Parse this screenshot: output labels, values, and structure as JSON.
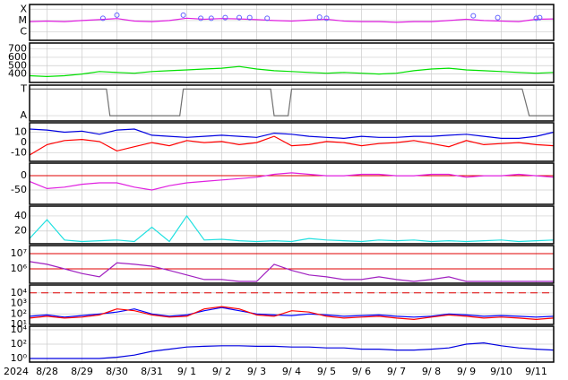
{
  "time_axis": {
    "year": "2024",
    "xlim": [
      0,
      15
    ],
    "xticks": [
      {
        "value": 0.5,
        "label": "8/28"
      },
      {
        "value": 1.5,
        "label": "8/29"
      },
      {
        "value": 2.5,
        "label": "8/30"
      },
      {
        "value": 3.5,
        "label": "8/31"
      },
      {
        "value": 4.5,
        "label": "9/ 1"
      },
      {
        "value": 5.5,
        "label": "9/ 2"
      },
      {
        "value": 6.5,
        "label": "9/ 3"
      },
      {
        "value": 7.5,
        "label": "9/ 4"
      },
      {
        "value": 8.5,
        "label": "9/ 5"
      },
      {
        "value": 9.5,
        "label": "9/ 6"
      },
      {
        "value": 10.5,
        "label": "9/ 7"
      },
      {
        "value": 11.5,
        "label": "9/ 8"
      },
      {
        "value": 12.5,
        "label": "9/ 9"
      },
      {
        "value": 13.5,
        "label": "9/10"
      },
      {
        "value": 14.5,
        "label": "9/11"
      }
    ],
    "x": [
      0,
      0.5,
      1,
      1.5,
      2,
      2.5,
      3,
      3.5,
      4,
      4.5,
      5,
      5.5,
      6,
      6.5,
      7,
      7.5,
      8,
      8.5,
      9,
      9.5,
      10,
      10.5,
      11,
      11.5,
      12,
      12.5,
      13,
      13.5,
      14,
      14.5,
      15
    ]
  },
  "chart_data": [
    {
      "type": "line",
      "log": true,
      "ylim": [
        1.8e-07,
        0.00026
      ],
      "yticks": [
        {
          "value": 0.0001,
          "label": "X"
        },
        {
          "value": 1e-05,
          "label": "M"
        },
        {
          "value": 1e-06,
          "label": "C"
        }
      ],
      "series": [
        {
          "color": "#e020e0",
          "values": [
            8e-06,
            9e-06,
            8e-06,
            1e-05,
            1.2e-05,
            1.5e-05,
            9e-06,
            8e-06,
            1e-05,
            1.6e-05,
            1.3e-05,
            1.5e-05,
            1.4e-05,
            1.2e-05,
            1e-05,
            9e-06,
            1.1e-05,
            1.3e-05,
            9e-06,
            8e-06,
            8e-06,
            7e-06,
            8e-06,
            8e-06,
            1e-05,
            1.3e-05,
            1e-05,
            9e-06,
            8e-06,
            1.3e-05,
            1.4e-05
          ]
        }
      ],
      "markers": {
        "color": "#6060ff",
        "x": [
          2.1,
          2.5,
          4.4,
          4.9,
          5.2,
          5.6,
          6.0,
          6.3,
          6.8,
          8.3,
          8.5,
          12.7,
          13.4,
          14.5,
          14.6
        ],
        "values": [
          1.6e-05,
          3e-05,
          3e-05,
          1.6e-05,
          1.6e-05,
          1.8e-05,
          1.8e-05,
          1.8e-05,
          1.6e-05,
          2e-05,
          1.6e-05,
          2.6e-05,
          1.8e-05,
          1.6e-05,
          1.8e-05
        ]
      }
    },
    {
      "type": "line",
      "log": false,
      "ylim": [
        300,
        770
      ],
      "yticks": [
        400,
        500,
        600,
        700
      ],
      "series": [
        {
          "color": "#00e000",
          "values": [
            380,
            370,
            380,
            400,
            430,
            420,
            410,
            430,
            440,
            450,
            460,
            470,
            490,
            460,
            440,
            430,
            420,
            410,
            420,
            410,
            400,
            410,
            440,
            460,
            470,
            450,
            440,
            430,
            420,
            410,
            420
          ]
        }
      ]
    },
    {
      "type": "line",
      "log": false,
      "ylim": [
        -1.4,
        1.3
      ],
      "yticks": [
        {
          "value": 1,
          "label": "T"
        },
        {
          "value": -1,
          "label": "A"
        }
      ],
      "series": [
        {
          "color": "#707070",
          "x": [
            0,
            2.2,
            2.3,
            4.3,
            4.4,
            6.9,
            7.0,
            7.4,
            7.5,
            14.1,
            14.3,
            15
          ],
          "values": [
            1,
            1,
            -1,
            -1,
            1,
            1,
            -1,
            -1,
            1,
            1,
            -1,
            -1
          ]
        }
      ]
    },
    {
      "type": "line",
      "log": false,
      "ylim": [
        -18,
        19
      ],
      "yticks": [
        10,
        0,
        -10
      ],
      "series": [
        {
          "color": "#0000e0",
          "values": [
            13,
            12,
            10,
            11,
            8,
            12,
            13,
            7,
            6,
            5,
            6,
            7,
            6,
            5,
            9,
            8,
            6,
            5,
            4,
            6,
            5,
            5,
            6,
            6,
            7,
            8,
            6,
            4,
            4,
            6,
            10
          ]
        },
        {
          "color": "#ff0000",
          "values": [
            -12,
            -2,
            2,
            3,
            1,
            -8,
            -4,
            0,
            -3,
            2,
            0,
            1,
            -2,
            0,
            6,
            -3,
            -2,
            1,
            0,
            -3,
            -1,
            0,
            2,
            -1,
            -4,
            2,
            -2,
            -1,
            0,
            -2,
            -3
          ]
        }
      ]
    },
    {
      "type": "line",
      "log": false,
      "ylim": [
        -100,
        44
      ],
      "yticks": [
        0,
        -50
      ],
      "hlines": [
        {
          "value": 0,
          "color": "#e00000"
        }
      ],
      "series": [
        {
          "color": "#e020e0",
          "values": [
            -20,
            -45,
            -40,
            -30,
            -25,
            -25,
            -40,
            -50,
            -35,
            -25,
            -20,
            -15,
            -10,
            -5,
            5,
            10,
            5,
            0,
            0,
            5,
            5,
            0,
            0,
            5,
            5,
            -5,
            0,
            0,
            5,
            0,
            -5
          ]
        }
      ]
    },
    {
      "type": "line",
      "log": false,
      "ylim": [
        3,
        53
      ],
      "yticks": [
        40,
        20
      ],
      "series": [
        {
          "color": "#20e0e0",
          "values": [
            10,
            35,
            8,
            6,
            7,
            8,
            6,
            25,
            6,
            40,
            8,
            9,
            7,
            6,
            7,
            6,
            10,
            8,
            7,
            6,
            8,
            7,
            8,
            6,
            7,
            6,
            7,
            8,
            6,
            7,
            8
          ]
        }
      ]
    },
    {
      "type": "line",
      "log": true,
      "ylim": [
        115000,
        34000000
      ],
      "yticks": [
        {
          "value": 10000000,
          "label": "10⁷"
        },
        {
          "value": 1000000,
          "label": "10⁶"
        }
      ],
      "hlines": [
        {
          "value": 10000000,
          "color": "#e00000"
        },
        {
          "value": 1000000,
          "color": "#e00000"
        }
      ],
      "series": [
        {
          "color": "#a020c0",
          "values": [
            3000000,
            2000000,
            1000000,
            500000,
            300000,
            2500000,
            2000000,
            1500000,
            800000,
            400000,
            200000,
            200000,
            150000,
            150000,
            2000000,
            800000,
            400000,
            300000,
            200000,
            200000,
            300000,
            200000,
            150000,
            200000,
            300000,
            150000,
            150000,
            150000,
            150000,
            150000,
            150000
          ]
        }
      ]
    },
    {
      "type": "line",
      "log": true,
      "ylim": [
        10,
        56000
      ],
      "yticks": [
        {
          "value": 10000,
          "label": "10⁴"
        },
        {
          "value": 1000,
          "label": "10³"
        },
        {
          "value": 100,
          "label": "10²"
        },
        {
          "value": 10,
          "label": "10¹"
        }
      ],
      "hlines": [
        {
          "value": 10000,
          "color": "#e00000",
          "dash": true
        }
      ],
      "series": [
        {
          "color": "#0000ff",
          "values": [
            60,
            80,
            50,
            70,
            100,
            150,
            300,
            100,
            60,
            80,
            200,
            400,
            200,
            100,
            80,
            70,
            100,
            80,
            60,
            70,
            80,
            60,
            50,
            60,
            100,
            80,
            60,
            70,
            60,
            50,
            60
          ]
        },
        {
          "color": "#ff0000",
          "values": [
            40,
            60,
            40,
            50,
            80,
            300,
            200,
            80,
            50,
            60,
            300,
            500,
            300,
            80,
            60,
            200,
            150,
            60,
            40,
            50,
            60,
            40,
            30,
            50,
            80,
            60,
            40,
            50,
            40,
            30,
            40
          ]
        }
      ]
    },
    {
      "type": "line",
      "log": true,
      "ylim": [
        0.316,
        31600
      ],
      "yticks": [
        {
          "value": 10000,
          "label": "10⁴"
        },
        {
          "value": 100,
          "label": "10²"
        },
        {
          "value": 1,
          "label": "10⁰"
        }
      ],
      "series": [
        {
          "color": "#0000e0",
          "values": [
            1,
            1,
            1,
            1,
            1,
            1.5,
            3,
            10,
            20,
            40,
            50,
            60,
            60,
            50,
            50,
            40,
            40,
            30,
            30,
            20,
            20,
            15,
            15,
            20,
            30,
            100,
            150,
            60,
            30,
            20,
            15
          ]
        }
      ]
    }
  ]
}
